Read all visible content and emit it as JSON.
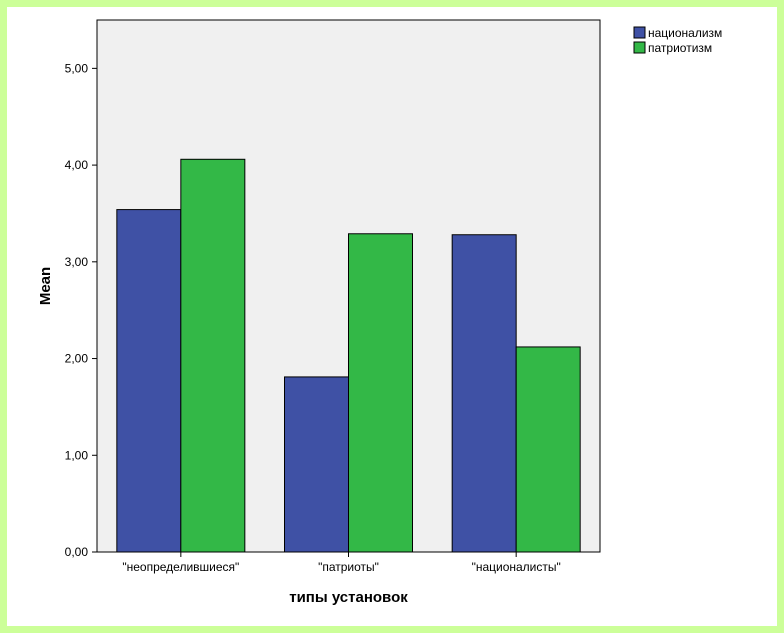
{
  "chart_data": {
    "type": "bar",
    "categories": [
      "\"неопределившиеся\"",
      "\"патриоты\"",
      "\"националисты\""
    ],
    "series": [
      {
        "name": "национализм",
        "values": [
          3.54,
          1.81,
          3.28
        ],
        "color": "#3f51a5"
      },
      {
        "name": "патриотизм",
        "values": [
          4.06,
          3.29,
          2.12
        ],
        "color": "#33b847"
      }
    ],
    "xlabel": "типы установок",
    "ylabel": "Mean",
    "ylim": [
      0,
      5.5
    ],
    "yticks": [
      "0,00",
      "1,00",
      "2,00",
      "3,00",
      "4,00",
      "5,00"
    ],
    "yticks_values": [
      0,
      1,
      2,
      3,
      4,
      5
    ],
    "grid": false,
    "plot_background": "#f0f0f0",
    "legend_position": "top-right"
  }
}
